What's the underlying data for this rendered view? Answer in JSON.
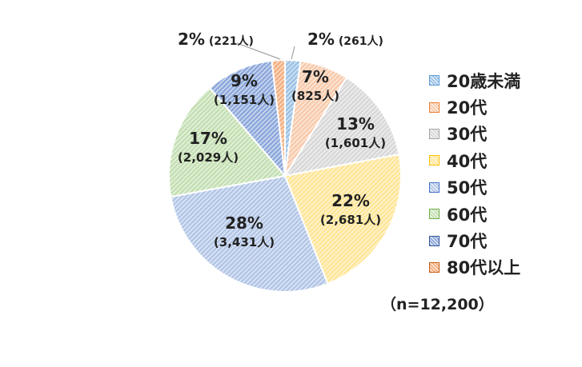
{
  "chart_data": {
    "type": "pie",
    "sample_size_label": "（n=12,200）",
    "slices": [
      {
        "category": "20歳未満",
        "percent_label": "2%",
        "count_label": "(261人)",
        "value": 261,
        "color": "#9DC3E6",
        "border": "#5B9BD5"
      },
      {
        "category": "20代",
        "percent_label": "7%",
        "count_label": "(825人)",
        "value": 825,
        "color": "#F8CBAD",
        "border": "#ED7D31"
      },
      {
        "category": "30代",
        "percent_label": "13%",
        "count_label": "(1,601人)",
        "value": 1601,
        "color": "#D9D9D9",
        "border": "#A5A5A5"
      },
      {
        "category": "40代",
        "percent_label": "22%",
        "count_label": "(2,681人)",
        "value": 2681,
        "color": "#FFE699",
        "border": "#FFC000"
      },
      {
        "category": "50代",
        "percent_label": "28%",
        "count_label": "(3,431人)",
        "value": 3431,
        "color": "#B4C7E7",
        "border": "#4472C4"
      },
      {
        "category": "60代",
        "percent_label": "17%",
        "count_label": "(2,029人)",
        "value": 2029,
        "color": "#C5E0B4",
        "border": "#70AD47"
      },
      {
        "category": "70代",
        "percent_label": "9%",
        "count_label": "(1,151人)",
        "value": 1151,
        "color": "#8FAADC",
        "border": "#2F5597"
      },
      {
        "category": "80代以上",
        "percent_label": "2%",
        "count_label": "(221人)",
        "value": 221,
        "color": "#F4B183",
        "border": "#C55A11"
      }
    ],
    "legend_position": "right"
  }
}
